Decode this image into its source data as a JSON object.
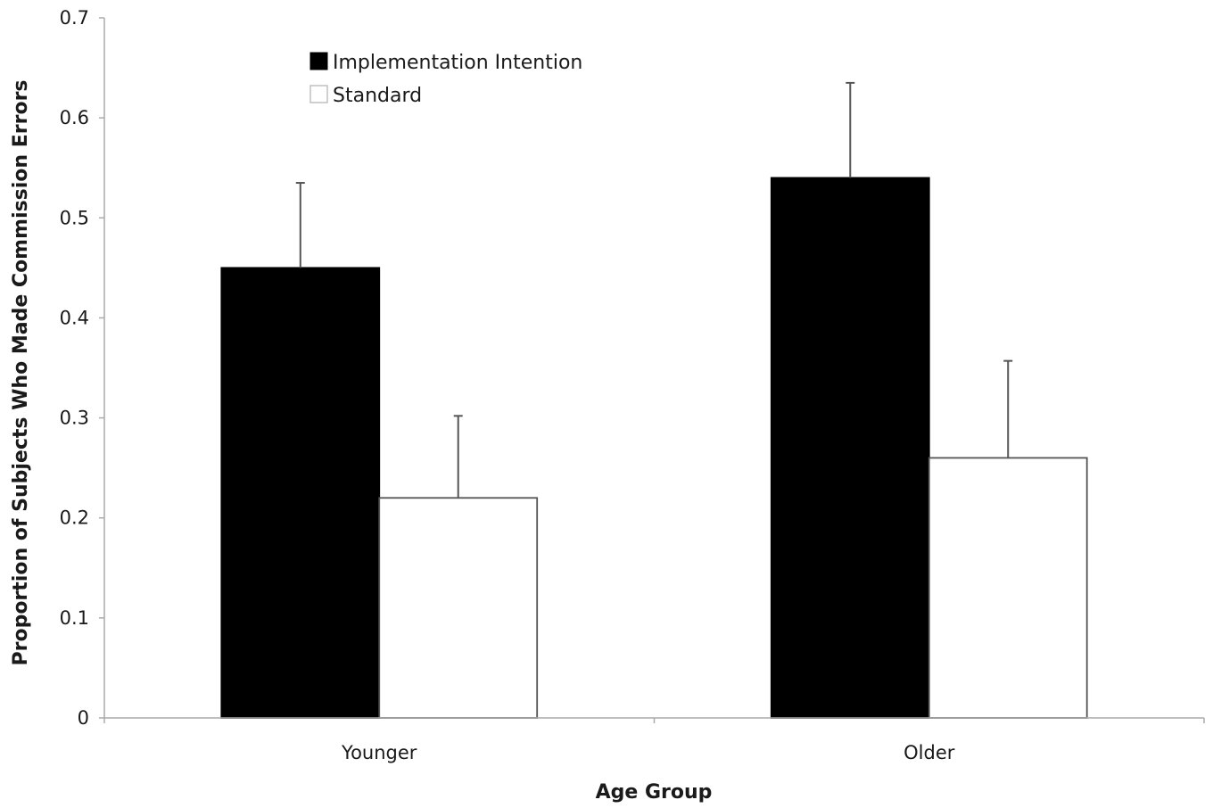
{
  "chart_data": {
    "type": "bar",
    "title": "",
    "xlabel": "Age Group",
    "ylabel": "Proportion of Subjects Who Made Commission Errors",
    "categories": [
      "Younger",
      "Older"
    ],
    "series": [
      {
        "name": "Implementation Intention",
        "values": [
          0.45,
          0.54
        ],
        "error_upper": [
          0.085,
          0.095
        ],
        "fill": "#000000"
      },
      {
        "name": "Standard",
        "values": [
          0.22,
          0.26
        ],
        "error_upper": [
          0.082,
          0.097
        ],
        "fill": "#ffffff"
      }
    ],
    "ylim": [
      0,
      0.7
    ],
    "yticks": [
      "0",
      "0.1",
      "0.2",
      "0.3",
      "0.4",
      "0.5",
      "0.6",
      "0.7"
    ],
    "grid": false,
    "legend_position": "top-left"
  }
}
